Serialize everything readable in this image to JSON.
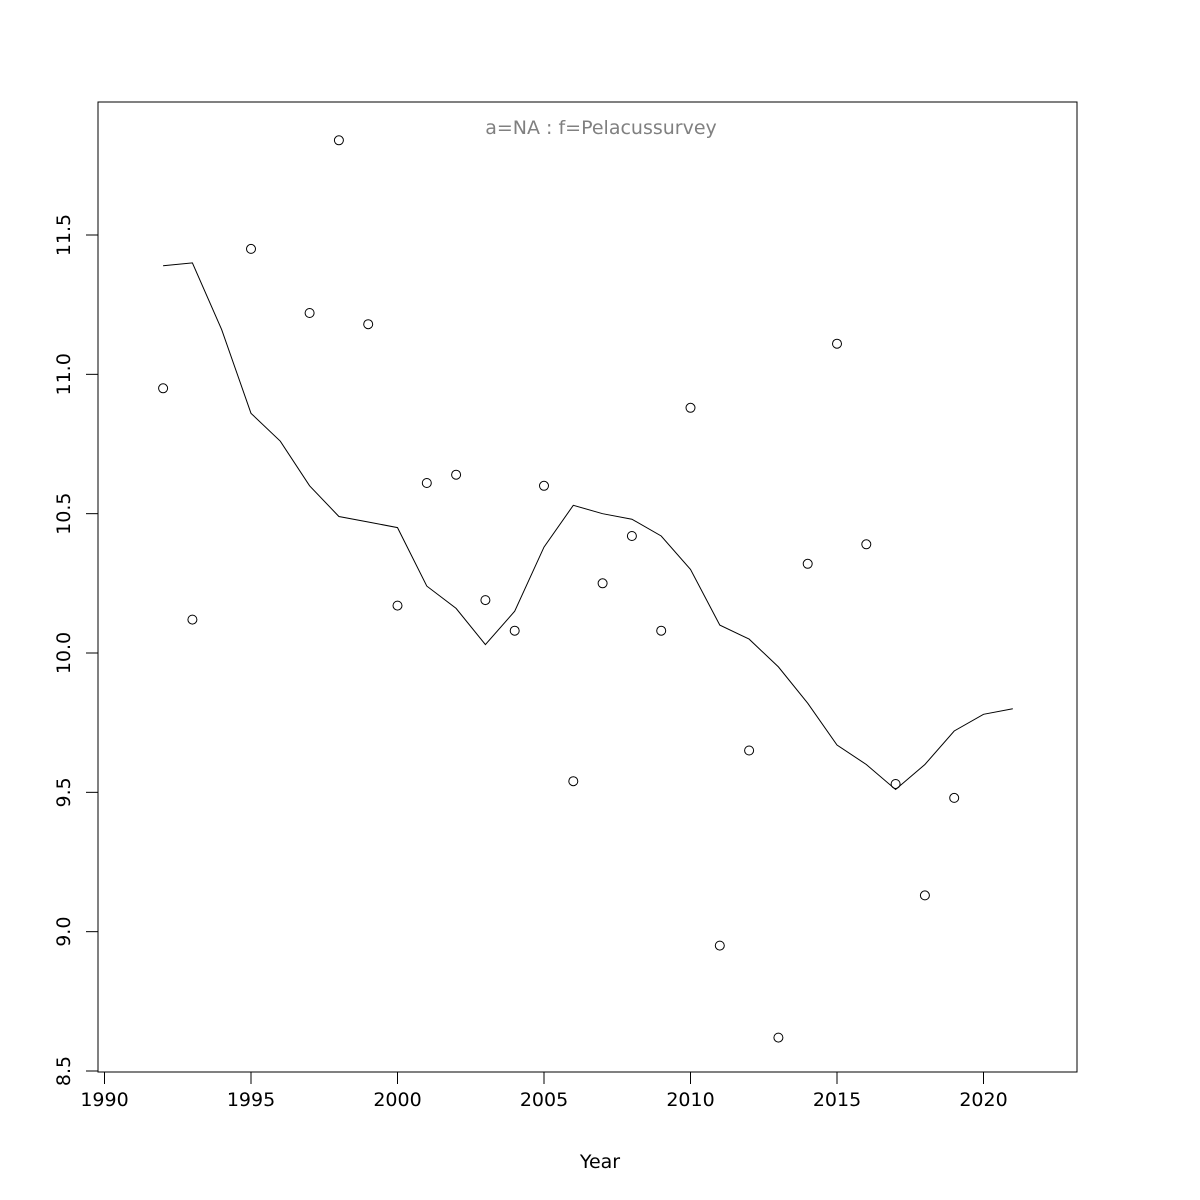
{
  "chart_data": {
    "type": "scatter",
    "title": "a=NA  :  f=Pelacussurvey",
    "xlabel": "Year",
    "ylabel": "",
    "xlim": [
      1990,
      2023
    ],
    "ylim": [
      8.5,
      11.98
    ],
    "grid": false,
    "x_ticks": [
      1990,
      1995,
      2000,
      2005,
      2010,
      2015,
      2020
    ],
    "x_tick_labels": [
      "1990",
      "1995",
      "2000",
      "2005",
      "2010",
      "2015",
      "2020"
    ],
    "y_ticks": [
      8.5,
      9.0,
      9.5,
      10.0,
      10.5,
      11.0,
      11.5
    ],
    "y_tick_labels": [
      "8.5",
      "9.0",
      "9.5",
      "10.0",
      "10.5",
      "11.0",
      "11.5"
    ],
    "points": {
      "name": "",
      "x": [
        1992,
        1993,
        1995,
        1997,
        1998,
        1999,
        2000,
        2001,
        2002,
        2003,
        2004,
        2005,
        2006,
        2007,
        2008,
        2009,
        2010,
        2011,
        2012,
        2013,
        2014,
        2015,
        2016,
        2017,
        2018,
        2019
      ],
      "y": [
        10.95,
        10.12,
        11.45,
        11.22,
        11.84,
        11.18,
        10.17,
        10.61,
        10.64,
        10.19,
        10.08,
        10.6,
        9.54,
        10.25,
        10.42,
        10.08,
        10.88,
        8.95,
        9.65,
        8.62,
        10.32,
        11.11,
        10.39,
        9.53,
        9.13,
        9.48
      ]
    },
    "smooth_line": {
      "name": "",
      "x": [
        1992,
        1993,
        1994,
        1995,
        1996,
        1997,
        1998,
        1999,
        2000,
        2001,
        2002,
        2003,
        2004,
        2005,
        2006,
        2007,
        2008,
        2009,
        2010,
        2011,
        2012,
        2013,
        2014,
        2015,
        2016,
        2017,
        2018,
        2019,
        2020,
        2021
      ],
      "y": [
        11.39,
        11.4,
        11.16,
        10.86,
        10.76,
        10.6,
        10.49,
        10.47,
        10.45,
        10.24,
        10.16,
        10.03,
        10.15,
        10.38,
        10.53,
        10.5,
        10.48,
        10.42,
        10.3,
        10.1,
        10.05,
        9.95,
        9.82,
        9.67,
        9.6,
        9.51,
        9.6,
        9.72,
        9.78,
        9.8
      ]
    }
  }
}
